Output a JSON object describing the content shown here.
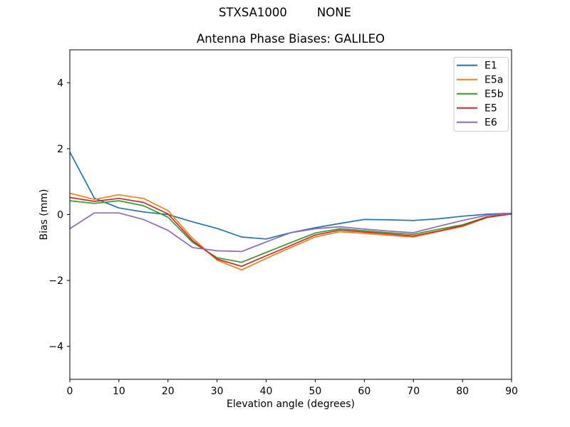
{
  "figure": {
    "suptitle": "STXSA1000        NONE",
    "background_color": "#ffffff"
  },
  "chart_data": {
    "type": "line",
    "title": "Antenna Phase Biases: GALILEO",
    "xlabel": "Elevation angle (degrees)",
    "ylabel": "Bias (mm)",
    "xlim": [
      0,
      90
    ],
    "ylim": [
      -5,
      5
    ],
    "xticks": [
      0,
      10,
      20,
      30,
      40,
      50,
      60,
      70,
      80,
      90
    ],
    "yticks": [
      -4,
      -2,
      0,
      2,
      4
    ],
    "grid": false,
    "legend_position": "upper right",
    "x": [
      0,
      5,
      10,
      15,
      20,
      25,
      30,
      35,
      40,
      45,
      50,
      55,
      60,
      65,
      70,
      75,
      80,
      85,
      90
    ],
    "series": [
      {
        "name": "E1",
        "color": "#1f77b4",
        "values": [
          1.9,
          0.5,
          0.2,
          0.08,
          0.0,
          -0.22,
          -0.42,
          -0.68,
          -0.74,
          -0.55,
          -0.4,
          -0.27,
          -0.15,
          -0.16,
          -0.18,
          -0.13,
          -0.05,
          0.01,
          0.04
        ]
      },
      {
        "name": "E5a",
        "color": "#ff7f0e",
        "values": [
          0.65,
          0.46,
          0.6,
          0.49,
          0.12,
          -0.72,
          -1.38,
          -1.68,
          -1.33,
          -1.0,
          -0.68,
          -0.52,
          -0.57,
          -0.63,
          -0.68,
          -0.52,
          -0.36,
          -0.09,
          0.02
        ]
      },
      {
        "name": "E5b",
        "color": "#2ca02c",
        "values": [
          0.42,
          0.34,
          0.42,
          0.27,
          -0.08,
          -0.84,
          -1.31,
          -1.45,
          -1.15,
          -0.85,
          -0.56,
          -0.43,
          -0.49,
          -0.55,
          -0.6,
          -0.45,
          -0.31,
          -0.07,
          0.02
        ]
      },
      {
        "name": "E5",
        "color": "#d62728",
        "values": [
          0.52,
          0.4,
          0.49,
          0.37,
          0.02,
          -0.79,
          -1.35,
          -1.57,
          -1.25,
          -0.94,
          -0.62,
          -0.47,
          -0.53,
          -0.59,
          -0.65,
          -0.5,
          -0.34,
          -0.08,
          0.02
        ]
      },
      {
        "name": "E6",
        "color": "#9467bd",
        "values": [
          -0.43,
          0.05,
          0.05,
          -0.15,
          -0.48,
          -1.0,
          -1.1,
          -1.12,
          -0.83,
          -0.55,
          -0.43,
          -0.37,
          -0.44,
          -0.5,
          -0.55,
          -0.36,
          -0.18,
          -0.02,
          0.03
        ]
      }
    ]
  }
}
